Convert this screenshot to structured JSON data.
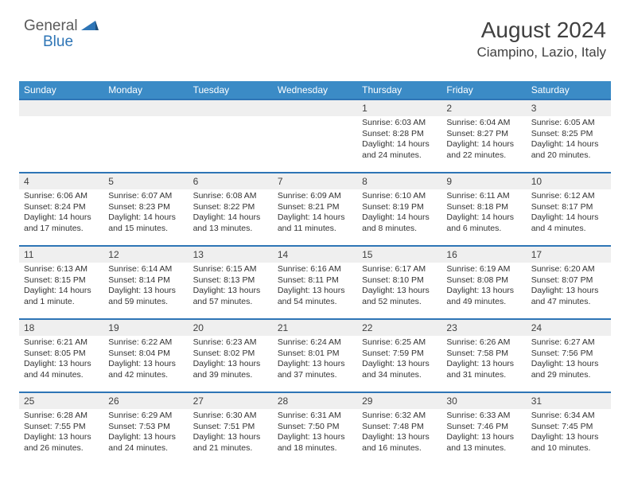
{
  "brand": {
    "prefix": "General",
    "suffix": "Blue"
  },
  "title": "August 2024",
  "location": "Ciampino, Lazio, Italy",
  "colors": {
    "header_bg": "#3b8bc6",
    "row_divider": "#2e75b6",
    "daynum_bg": "#efefef",
    "text": "#404040"
  },
  "labels": {
    "sunrise": "Sunrise:",
    "sunset": "Sunset:",
    "daylight": "Daylight:"
  },
  "day_headers": [
    "Sunday",
    "Monday",
    "Tuesday",
    "Wednesday",
    "Thursday",
    "Friday",
    "Saturday"
  ],
  "weeks": [
    [
      null,
      null,
      null,
      null,
      {
        "d": "1",
        "sr": "6:03 AM",
        "ss": "8:28 PM",
        "dl": "14 hours and 24 minutes."
      },
      {
        "d": "2",
        "sr": "6:04 AM",
        "ss": "8:27 PM",
        "dl": "14 hours and 22 minutes."
      },
      {
        "d": "3",
        "sr": "6:05 AM",
        "ss": "8:25 PM",
        "dl": "14 hours and 20 minutes."
      }
    ],
    [
      {
        "d": "4",
        "sr": "6:06 AM",
        "ss": "8:24 PM",
        "dl": "14 hours and 17 minutes."
      },
      {
        "d": "5",
        "sr": "6:07 AM",
        "ss": "8:23 PM",
        "dl": "14 hours and 15 minutes."
      },
      {
        "d": "6",
        "sr": "6:08 AM",
        "ss": "8:22 PM",
        "dl": "14 hours and 13 minutes."
      },
      {
        "d": "7",
        "sr": "6:09 AM",
        "ss": "8:21 PM",
        "dl": "14 hours and 11 minutes."
      },
      {
        "d": "8",
        "sr": "6:10 AM",
        "ss": "8:19 PM",
        "dl": "14 hours and 8 minutes."
      },
      {
        "d": "9",
        "sr": "6:11 AM",
        "ss": "8:18 PM",
        "dl": "14 hours and 6 minutes."
      },
      {
        "d": "10",
        "sr": "6:12 AM",
        "ss": "8:17 PM",
        "dl": "14 hours and 4 minutes."
      }
    ],
    [
      {
        "d": "11",
        "sr": "6:13 AM",
        "ss": "8:15 PM",
        "dl": "14 hours and 1 minute."
      },
      {
        "d": "12",
        "sr": "6:14 AM",
        "ss": "8:14 PM",
        "dl": "13 hours and 59 minutes."
      },
      {
        "d": "13",
        "sr": "6:15 AM",
        "ss": "8:13 PM",
        "dl": "13 hours and 57 minutes."
      },
      {
        "d": "14",
        "sr": "6:16 AM",
        "ss": "8:11 PM",
        "dl": "13 hours and 54 minutes."
      },
      {
        "d": "15",
        "sr": "6:17 AM",
        "ss": "8:10 PM",
        "dl": "13 hours and 52 minutes."
      },
      {
        "d": "16",
        "sr": "6:19 AM",
        "ss": "8:08 PM",
        "dl": "13 hours and 49 minutes."
      },
      {
        "d": "17",
        "sr": "6:20 AM",
        "ss": "8:07 PM",
        "dl": "13 hours and 47 minutes."
      }
    ],
    [
      {
        "d": "18",
        "sr": "6:21 AM",
        "ss": "8:05 PM",
        "dl": "13 hours and 44 minutes."
      },
      {
        "d": "19",
        "sr": "6:22 AM",
        "ss": "8:04 PM",
        "dl": "13 hours and 42 minutes."
      },
      {
        "d": "20",
        "sr": "6:23 AM",
        "ss": "8:02 PM",
        "dl": "13 hours and 39 minutes."
      },
      {
        "d": "21",
        "sr": "6:24 AM",
        "ss": "8:01 PM",
        "dl": "13 hours and 37 minutes."
      },
      {
        "d": "22",
        "sr": "6:25 AM",
        "ss": "7:59 PM",
        "dl": "13 hours and 34 minutes."
      },
      {
        "d": "23",
        "sr": "6:26 AM",
        "ss": "7:58 PM",
        "dl": "13 hours and 31 minutes."
      },
      {
        "d": "24",
        "sr": "6:27 AM",
        "ss": "7:56 PM",
        "dl": "13 hours and 29 minutes."
      }
    ],
    [
      {
        "d": "25",
        "sr": "6:28 AM",
        "ss": "7:55 PM",
        "dl": "13 hours and 26 minutes."
      },
      {
        "d": "26",
        "sr": "6:29 AM",
        "ss": "7:53 PM",
        "dl": "13 hours and 24 minutes."
      },
      {
        "d": "27",
        "sr": "6:30 AM",
        "ss": "7:51 PM",
        "dl": "13 hours and 21 minutes."
      },
      {
        "d": "28",
        "sr": "6:31 AM",
        "ss": "7:50 PM",
        "dl": "13 hours and 18 minutes."
      },
      {
        "d": "29",
        "sr": "6:32 AM",
        "ss": "7:48 PM",
        "dl": "13 hours and 16 minutes."
      },
      {
        "d": "30",
        "sr": "6:33 AM",
        "ss": "7:46 PM",
        "dl": "13 hours and 13 minutes."
      },
      {
        "d": "31",
        "sr": "6:34 AM",
        "ss": "7:45 PM",
        "dl": "13 hours and 10 minutes."
      }
    ]
  ]
}
